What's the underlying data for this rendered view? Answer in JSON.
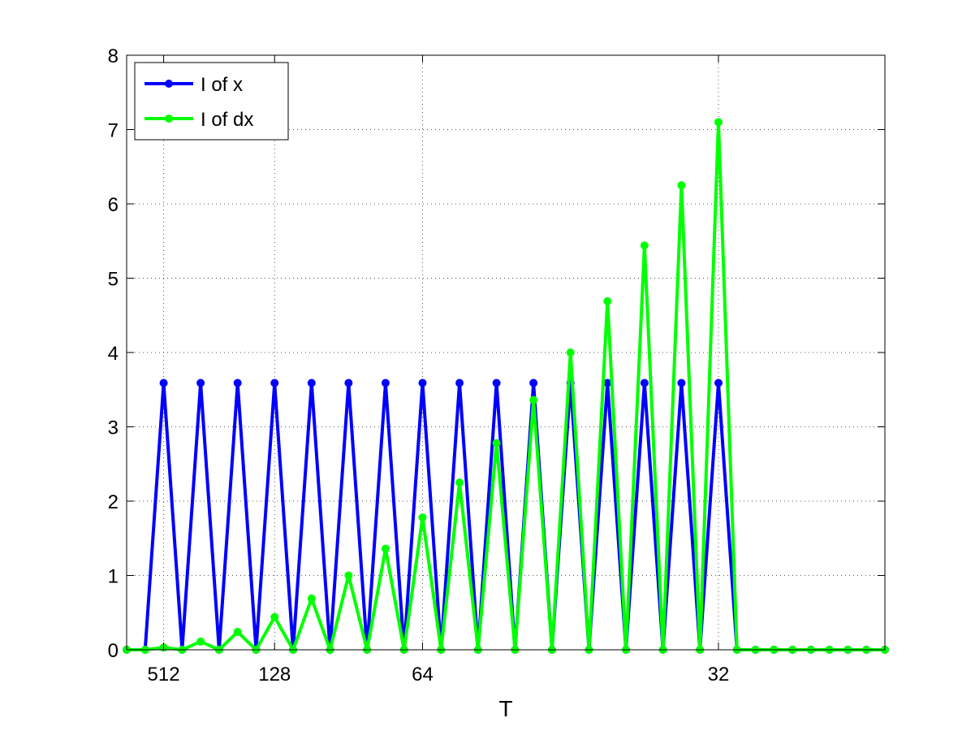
{
  "chart_data": {
    "type": "line",
    "xlabel": "T",
    "ylabel": "",
    "title": "",
    "x": [
      1,
      2,
      3,
      4,
      5,
      6,
      7,
      8,
      9,
      10,
      11,
      12,
      13,
      14,
      15,
      16,
      17,
      18,
      19,
      20,
      21,
      22,
      23,
      24,
      25,
      26,
      27,
      28,
      29,
      30,
      31,
      32,
      33,
      34,
      35,
      36,
      37,
      38,
      39,
      40,
      41,
      42
    ],
    "xlim": [
      1,
      42
    ],
    "ylim": [
      0,
      8
    ],
    "yticks": [
      0,
      1,
      2,
      3,
      4,
      5,
      6,
      7,
      8
    ],
    "xticks": [
      {
        "x": 3,
        "label": "512"
      },
      {
        "x": 9,
        "label": "128"
      },
      {
        "x": 17,
        "label": "64"
      },
      {
        "x": 33,
        "label": "32"
      }
    ],
    "xgrid_positions": [
      3,
      9,
      17,
      33
    ],
    "grid": true,
    "legend_position": "top-left",
    "series": [
      {
        "name": "I of x",
        "color": "#0000ff",
        "values": [
          0,
          0,
          3.59,
          0,
          3.59,
          0,
          3.59,
          0,
          3.59,
          0,
          3.59,
          0,
          3.59,
          0,
          3.59,
          0,
          3.59,
          0,
          3.59,
          0,
          3.59,
          0,
          3.59,
          0,
          3.59,
          0,
          3.59,
          0,
          3.59,
          0,
          3.59,
          0,
          3.59,
          0,
          0,
          0,
          0,
          0,
          0,
          0,
          0,
          0
        ]
      },
      {
        "name": "I of dx",
        "color": "#00ff00",
        "values": [
          0,
          0,
          0.03,
          0,
          0.11,
          0,
          0.24,
          0,
          0.44,
          0,
          0.69,
          0,
          1.0,
          0,
          1.36,
          0,
          1.78,
          0,
          2.25,
          0,
          2.78,
          0,
          3.36,
          0,
          4.0,
          0,
          4.69,
          0,
          5.44,
          0,
          6.25,
          0,
          7.1,
          0,
          0,
          0,
          0,
          0,
          0,
          0,
          0,
          0
        ]
      }
    ]
  }
}
